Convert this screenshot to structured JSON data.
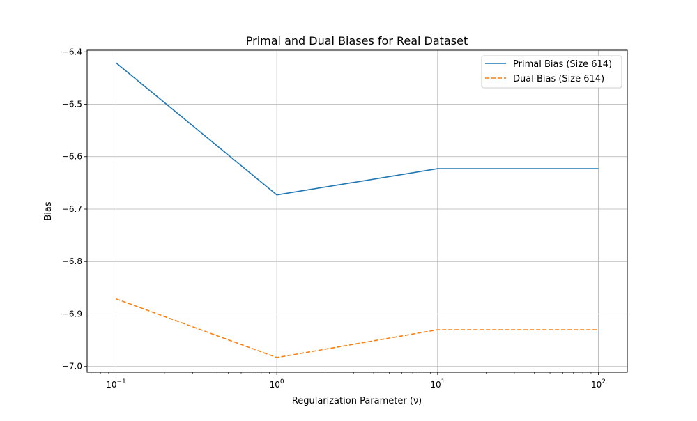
{
  "chart_data": {
    "type": "line",
    "title": "Primal and Dual Biases for Real Dataset",
    "xlabel": "Regularization Parameter (ν)",
    "ylabel": "Bias",
    "x_scale": "log",
    "x": [
      0.1,
      1,
      10,
      100
    ],
    "x_tick_labels": [
      {
        "value": 0.1,
        "base": "10",
        "exp": "−1"
      },
      {
        "value": 1,
        "base": "10",
        "exp": "0"
      },
      {
        "value": 10,
        "base": "10",
        "exp": "1"
      },
      {
        "value": 100,
        "base": "10",
        "exp": "2"
      }
    ],
    "xlim": [
      0.0661,
      151.3
    ],
    "ylim": [
      -7.011,
      -6.397
    ],
    "y_ticks": [
      -6.4,
      -6.5,
      -6.6,
      -6.7,
      -6.8,
      -6.9,
      -7.0
    ],
    "y_tick_labels": [
      "−6.4",
      "−6.5",
      "−6.6",
      "−6.7",
      "−6.8",
      "−6.9",
      "−7.0"
    ],
    "grid": true,
    "legend_position": "top-right",
    "series": [
      {
        "name": "Primal Bias (Size 614)",
        "values": [
          -6.421,
          -6.673,
          -6.623,
          -6.623
        ],
        "color": "#1f77b4",
        "style": "solid"
      },
      {
        "name": "Dual Bias (Size 614)",
        "values": [
          -6.871,
          -6.983,
          -6.93,
          -6.93
        ],
        "color": "#ff7f0e",
        "style": "dashed"
      }
    ]
  }
}
